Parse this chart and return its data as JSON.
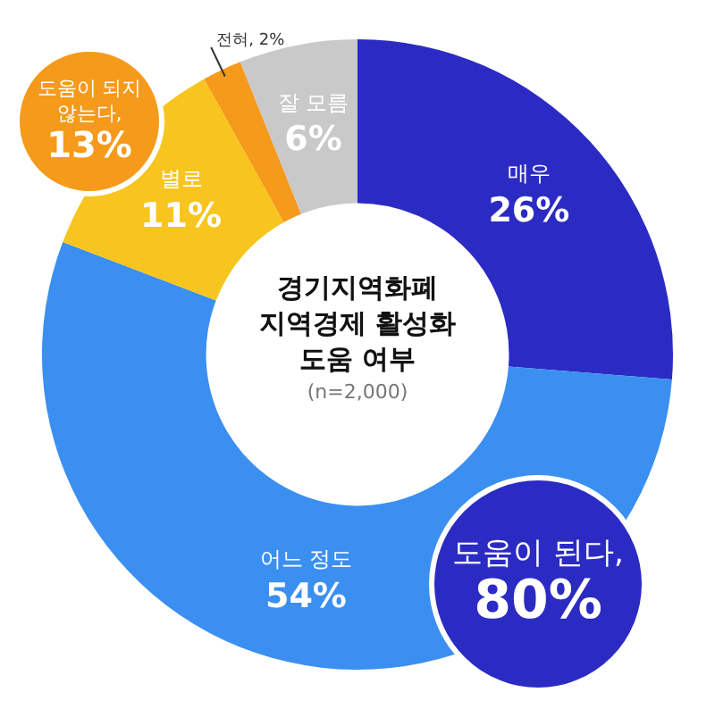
{
  "chart_data": {
    "type": "donut",
    "title": "경기지역화폐 지역경제 활성화 도움 여부",
    "subtitle": "(n=2,000)",
    "categories": [
      "매우",
      "어느 정도",
      "별로",
      "전혀",
      "잘 모름"
    ],
    "values": [
      26,
      54,
      11,
      2,
      6
    ],
    "value_labels": [
      "26%",
      "54%",
      "11%",
      "2%",
      "6%"
    ],
    "colors": [
      "#2b2bc4",
      "#3b8ff0",
      "#f8c51e",
      "#f59a1a",
      "#c9c9c9"
    ],
    "annotations": [
      "도움이 되지 않는다,",
      "13%",
      "도움이 된다,",
      "80%"
    ]
  }
}
